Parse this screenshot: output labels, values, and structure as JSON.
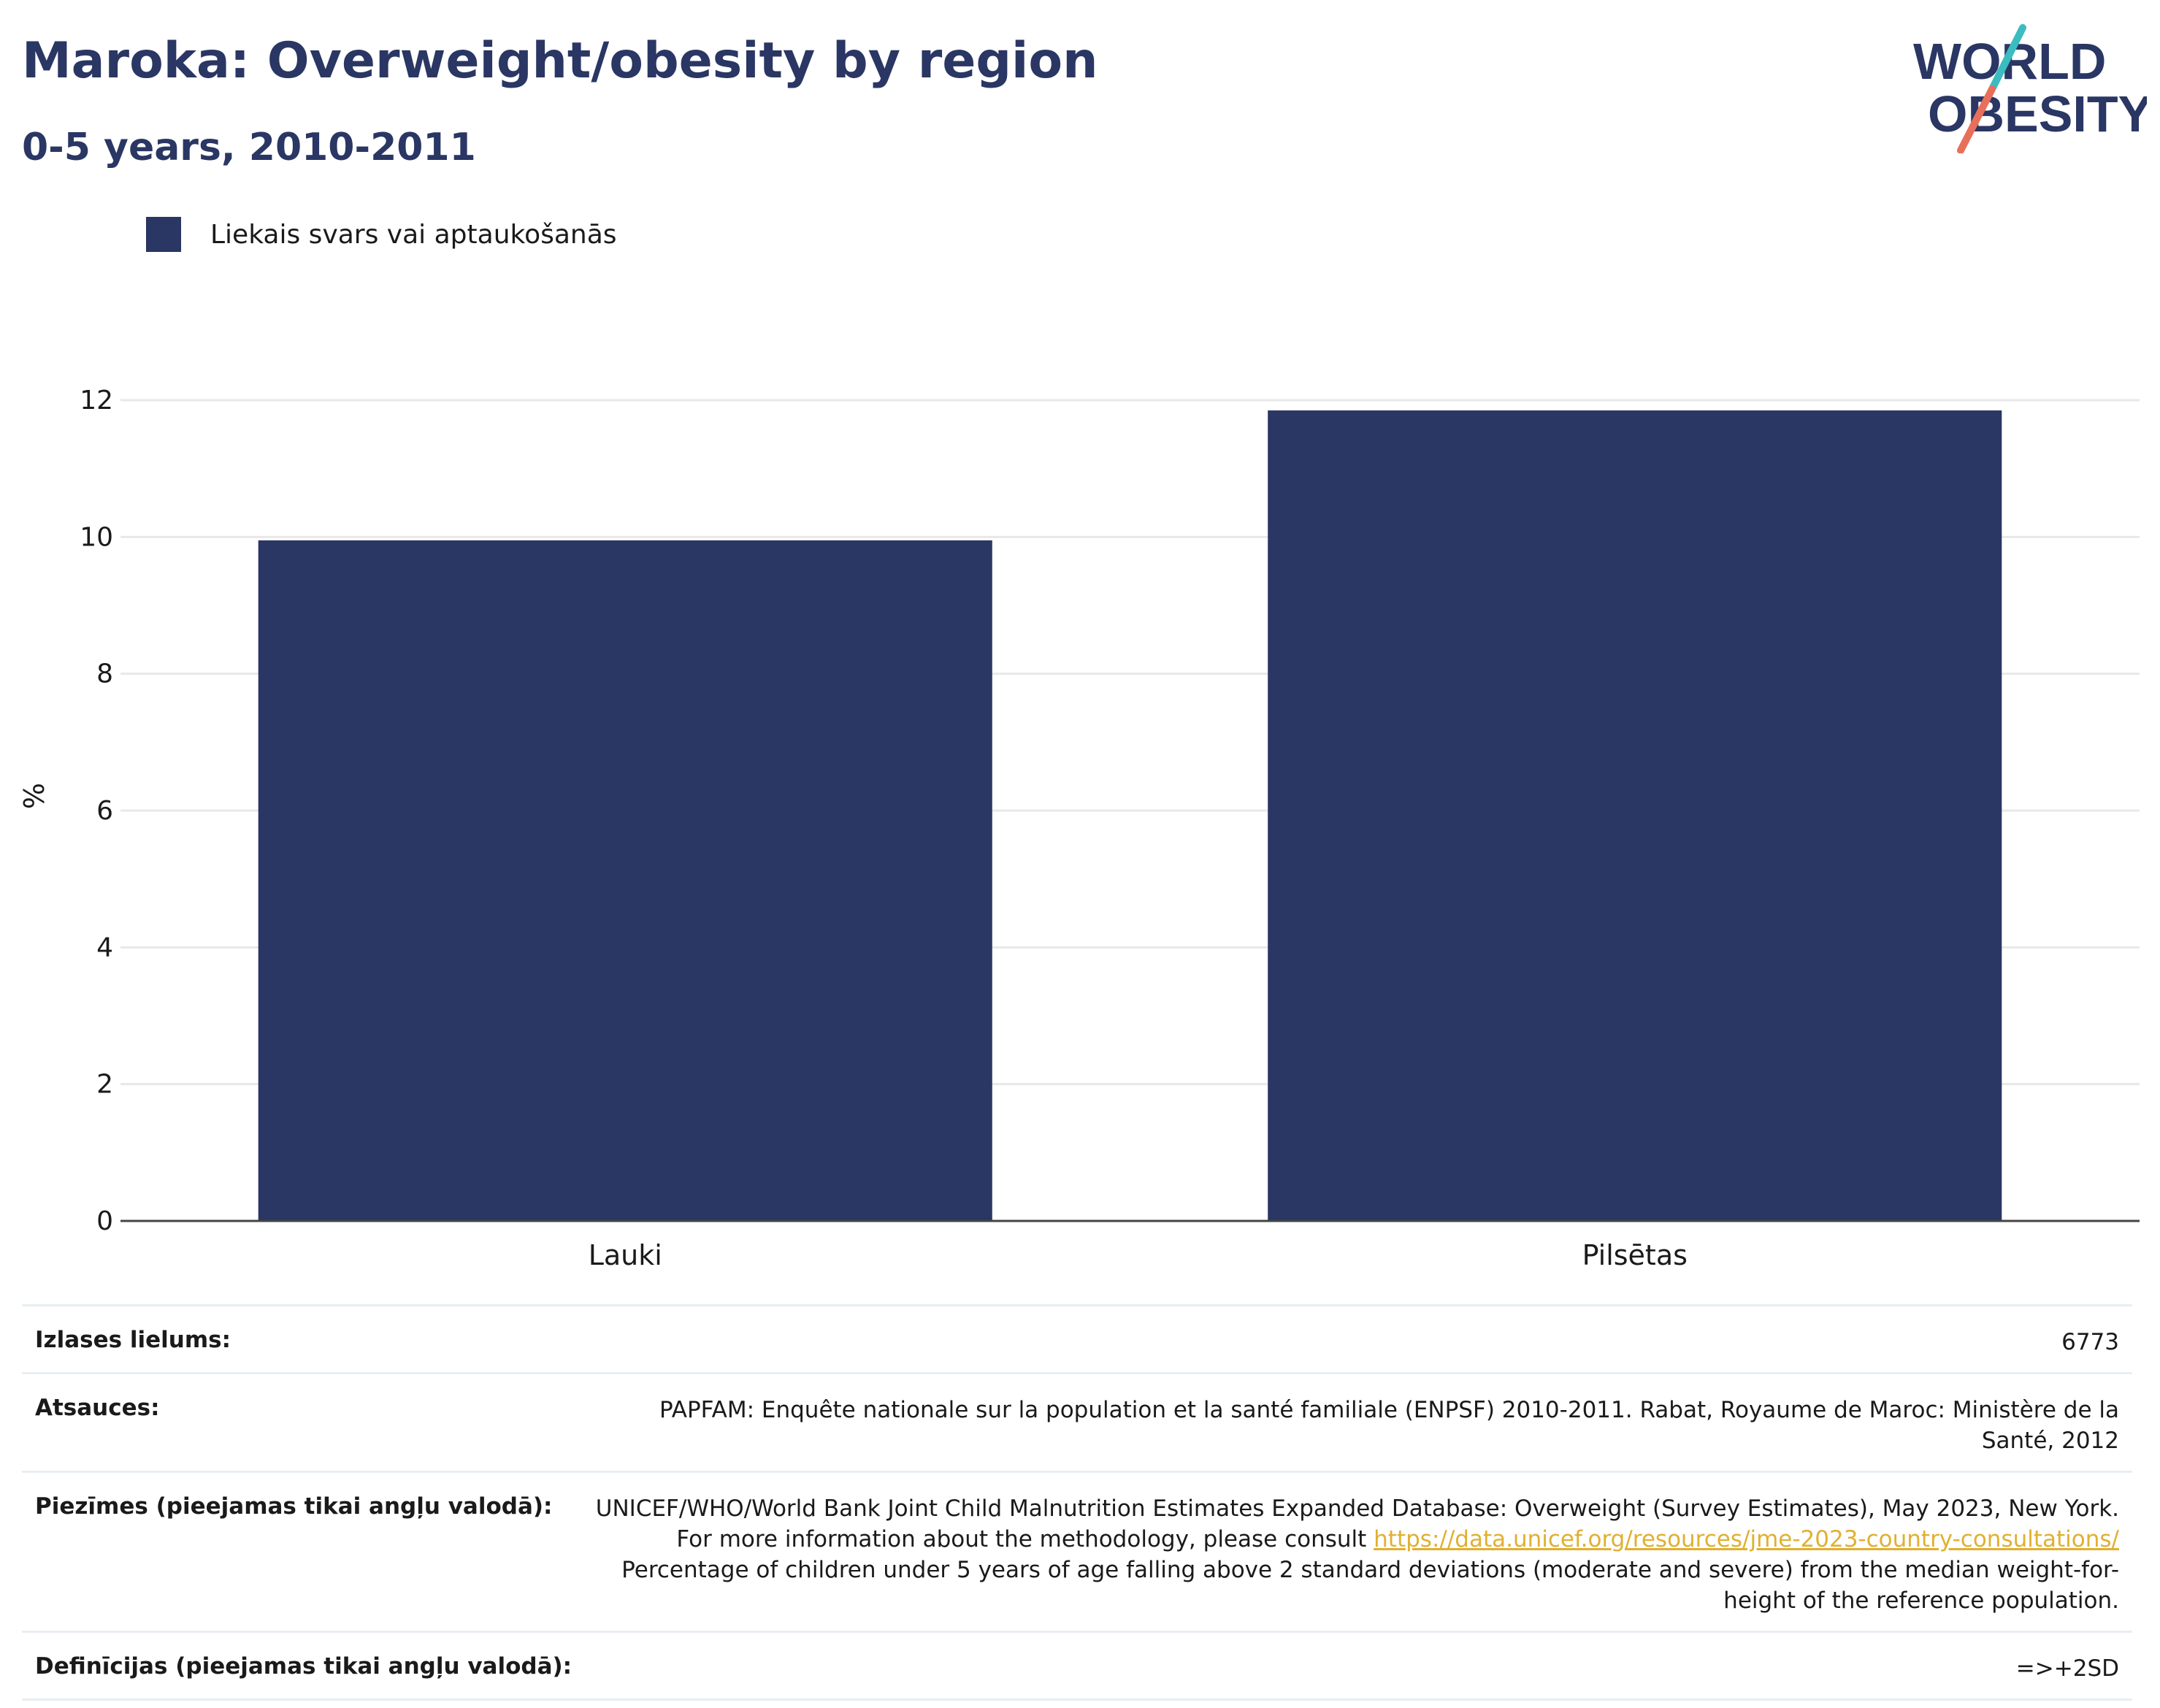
{
  "header": {
    "title": "Maroka: Overweight/obesity by region",
    "subtitle": "0-5 years, 2010-2011"
  },
  "logo": {
    "line1": "WORLD",
    "line2": "OBESITY",
    "name": "world-obesity-logo"
  },
  "colors": {
    "bar": "#2a3663",
    "title": "#2a3663",
    "grid": "#e8e8e8",
    "link": "#e0b030",
    "logo_teal": "#3bbcc0",
    "logo_coral": "#e8705a"
  },
  "chart_data": {
    "type": "bar",
    "categories": [
      "Lauki",
      "Pilsētas"
    ],
    "series": [
      {
        "name": "Liekais svars vai aptaukošanās",
        "values": [
          9.95,
          11.85
        ]
      }
    ],
    "ylabel": "%",
    "xlabel": "",
    "ylim": [
      0,
      12
    ],
    "yticks": [
      0,
      2,
      4,
      6,
      8,
      10,
      12
    ],
    "grid": true,
    "legend": "top-left"
  },
  "info": {
    "sample_label": "Izlases lielums:",
    "sample_value": "6773",
    "sources_label": "Atsauces:",
    "sources_value": "PAPFAM: Enquête nationale sur la population et la santé familiale (ENPSF) 2010-2011. Rabat, Royaume de Maroc: Ministère de la Santé, 2012",
    "notes_label": "Piezīmes (pieejamas tikai angļu valodā):",
    "notes_text1": "UNICEF/WHO/World Bank Joint Child Malnutrition Estimates Expanded Database: Overweight (Survey Estimates), May 2023, New York. For more information about the methodology, please consult ",
    "notes_link": "https://data.unicef.org/resources/jme-2023-country-consultations/",
    "notes_text2": " Percentage of children under 5 years of age falling above 2 standard deviations (moderate and severe) from the median weight-for-height of the reference population.",
    "definitions_label": "Definīcijas (pieejamas tikai angļu valodā):",
    "definitions_value": "=>+2SD"
  }
}
